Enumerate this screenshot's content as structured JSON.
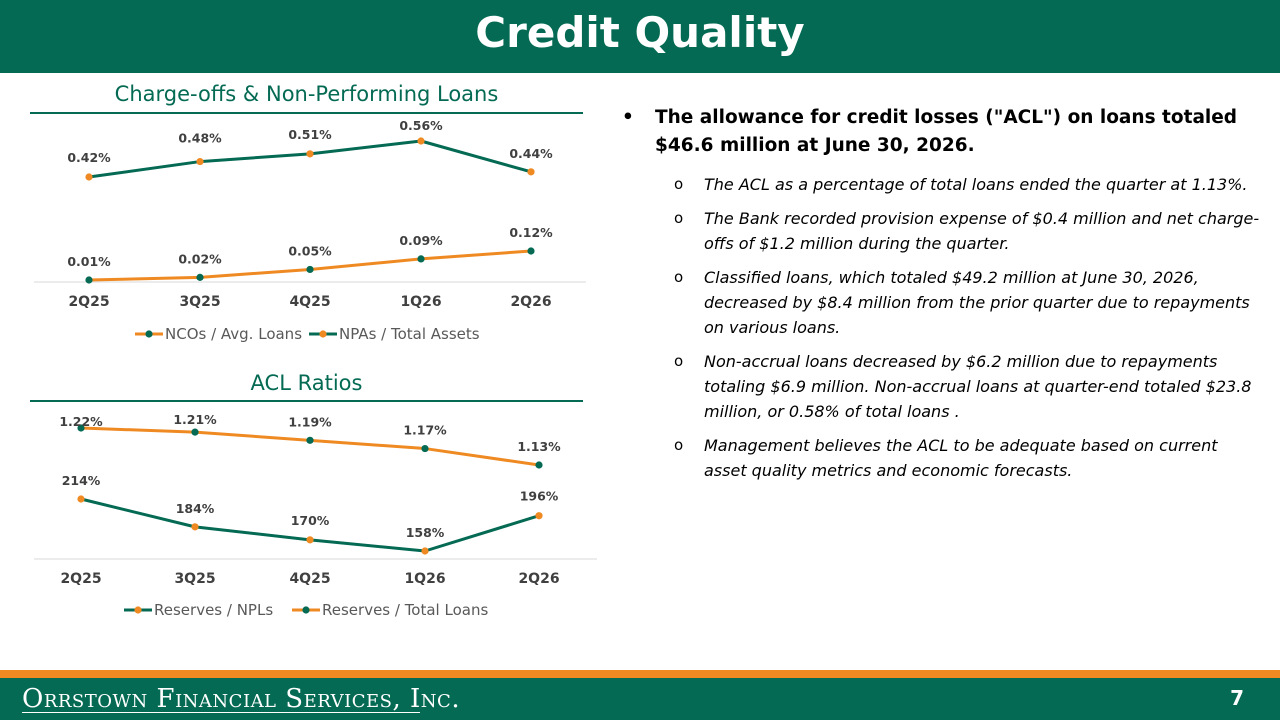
{
  "header": {
    "title": "Credit Quality"
  },
  "chart_data": [
    {
      "type": "line",
      "title": "Charge-offs & Non-Performing Loans",
      "categories": [
        "2Q25",
        "3Q25",
        "4Q25",
        "1Q26",
        "2Q26"
      ],
      "series": [
        {
          "name": "NCOs / Avg. Loans",
          "values": [
            0.01,
            0.02,
            0.05,
            0.09,
            0.12
          ],
          "labels": [
            "0.01%",
            "0.02%",
            "0.05%",
            "0.09%",
            "0.12%"
          ],
          "line_color": "#ef8a23",
          "marker_color": "#046a53"
        },
        {
          "name": "NPAs /  Total Assets",
          "values": [
            0.42,
            0.48,
            0.51,
            0.56,
            0.44
          ],
          "labels": [
            "0.42%",
            "0.48%",
            "0.51%",
            "0.56%",
            "0.44%"
          ],
          "line_color": "#046a53",
          "marker_color": "#ef8a23"
        }
      ],
      "legend": "bottom",
      "grid": false
    },
    {
      "type": "line",
      "title": "ACL Ratios",
      "categories": [
        "2Q25",
        "3Q25",
        "4Q25",
        "1Q26",
        "2Q26"
      ],
      "series": [
        {
          "name": "Reserves / NPLs",
          "values": [
            214,
            184,
            170,
            158,
            196
          ],
          "labels": [
            "214%",
            "184%",
            "170%",
            "158%",
            "196%"
          ],
          "line_color": "#046a53",
          "marker_color": "#ef8a23"
        },
        {
          "name": "Reserves / Total Loans",
          "values": [
            1.22,
            1.21,
            1.19,
            1.17,
            1.13
          ],
          "labels": [
            "1.22%",
            "1.21%",
            "1.19%",
            "1.17%",
            "1.13%"
          ],
          "line_color": "#ef8a23",
          "marker_color": "#046a53"
        }
      ],
      "legend": "bottom",
      "grid": false
    }
  ],
  "bullets": {
    "main_marker": "•",
    "main": "The allowance for credit losses (\"ACL\") on loans totaled $46.6 million at June 30, 2026.",
    "sub_marker": "o",
    "subs": [
      "The ACL as a percentage of total loans ended the quarter at 1.13%.",
      "The Bank recorded provision expense of $0.4 million and net charge-offs of $1.2 million during the quarter.",
      "Classified loans, which totaled $49.2 million at June 30, 2026, decreased by $8.4 million from the prior quarter due to repayments on various loans.",
      "Non-accrual loans decreased by $6.2 million due to repayments totaling $6.9 million. Non-accrual loans at quarter-end totaled $23.8 million, or 0.58% of total loans .",
      "Management believes the ACL to be adequate based on current asset quality metrics and economic forecasts."
    ]
  },
  "footer": {
    "logo_text": "Orrstown Financial Services, Inc.",
    "page_number": "7"
  },
  "colors": {
    "brand_green": "#046a53",
    "accent_orange": "#ef8a23"
  }
}
